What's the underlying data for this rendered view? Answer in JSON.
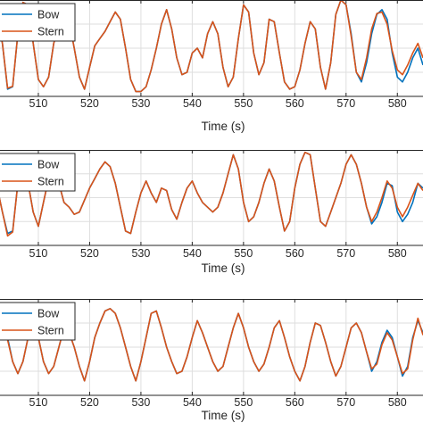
{
  "chart_data": [
    {
      "type": "line",
      "xlabel": "Time (s)",
      "xticks": [
        "510",
        "520",
        "530",
        "540",
        "550",
        "560",
        "570",
        "580"
      ],
      "xlim": [
        502,
        585
      ],
      "ylim": [
        -1.0,
        1.0
      ],
      "grid": true,
      "legend": {
        "position": "top-left",
        "entries": [
          "Bow",
          "Stern"
        ]
      },
      "series": [
        {
          "name": "Bow",
          "color": "#0072BD",
          "x": [
            502,
            503,
            504,
            505,
            506,
            507,
            508,
            509,
            510,
            511,
            512,
            513,
            514,
            515,
            516,
            517,
            518,
            519,
            520,
            521,
            522,
            523,
            524,
            525,
            526,
            527,
            528,
            529,
            530,
            531,
            532,
            533,
            534,
            535,
            536,
            537,
            538,
            539,
            540,
            541,
            542,
            543,
            544,
            545,
            546,
            547,
            548,
            549,
            550,
            551,
            552,
            553,
            554,
            555,
            556,
            557,
            558,
            559,
            560,
            561,
            562,
            563,
            564,
            565,
            566,
            567,
            568,
            569,
            570,
            571,
            572,
            573,
            574,
            575,
            576,
            577,
            578,
            579,
            580,
            581,
            582,
            583,
            584,
            585
          ],
          "y": [
            0.6,
            0.1,
            -0.85,
            -0.8,
            0.3,
            0.95,
            0.9,
            0.1,
            -0.65,
            -0.8,
            -0.6,
            0.1,
            0.45,
            0.6,
            0.55,
            0.0,
            -0.6,
            -0.85,
            -0.4,
            0.05,
            0.2,
            0.35,
            0.55,
            0.75,
            0.6,
            0.0,
            -0.65,
            -0.9,
            -0.9,
            -0.8,
            -0.45,
            0.0,
            0.5,
            0.8,
            0.4,
            -0.2,
            -0.55,
            -0.5,
            -0.1,
            0.0,
            -0.2,
            0.3,
            0.55,
            0.3,
            -0.4,
            -0.8,
            -0.6,
            0.2,
            0.9,
            0.75,
            -0.1,
            -0.55,
            -0.3,
            0.6,
            0.55,
            -0.1,
            -0.7,
            -0.85,
            -0.8,
            -0.45,
            0.1,
            0.55,
            0.4,
            -0.4,
            -0.85,
            -0.3,
            0.7,
            1.0,
            0.9,
            0.3,
            -0.5,
            -0.7,
            -0.3,
            0.3,
            0.7,
            0.8,
            0.6,
            -0.1,
            -0.6,
            -0.7,
            -0.5,
            -0.2,
            0.0,
            -0.35
          ]
        },
        {
          "name": "Stern",
          "color": "#D95319",
          "x": [
            502,
            503,
            504,
            505,
            506,
            507,
            508,
            509,
            510,
            511,
            512,
            513,
            514,
            515,
            516,
            517,
            518,
            519,
            520,
            521,
            522,
            523,
            524,
            525,
            526,
            527,
            528,
            529,
            530,
            531,
            532,
            533,
            534,
            535,
            536,
            537,
            538,
            539,
            540,
            541,
            542,
            543,
            544,
            545,
            546,
            547,
            548,
            549,
            550,
            551,
            552,
            553,
            554,
            555,
            556,
            557,
            558,
            559,
            560,
            561,
            562,
            563,
            564,
            565,
            566,
            567,
            568,
            569,
            570,
            571,
            572,
            573,
            574,
            575,
            576,
            577,
            578,
            579,
            580,
            581,
            582,
            583,
            584,
            585
          ],
          "y": [
            0.58,
            0.1,
            -0.83,
            -0.79,
            0.3,
            0.95,
            0.9,
            0.1,
            -0.65,
            -0.8,
            -0.6,
            0.1,
            0.45,
            0.6,
            0.55,
            0.0,
            -0.6,
            -0.85,
            -0.4,
            0.05,
            0.2,
            0.35,
            0.55,
            0.75,
            0.6,
            0.0,
            -0.65,
            -0.9,
            -0.9,
            -0.8,
            -0.45,
            0.0,
            0.5,
            0.8,
            0.4,
            -0.2,
            -0.55,
            -0.5,
            -0.1,
            0.0,
            -0.2,
            0.3,
            0.55,
            0.3,
            -0.4,
            -0.8,
            -0.6,
            0.2,
            0.9,
            0.75,
            -0.1,
            -0.55,
            -0.3,
            0.6,
            0.55,
            -0.1,
            -0.7,
            -0.85,
            -0.8,
            -0.45,
            0.1,
            0.55,
            0.4,
            -0.4,
            -0.85,
            -0.3,
            0.7,
            1.0,
            0.9,
            0.25,
            -0.5,
            -0.65,
            -0.2,
            0.4,
            0.72,
            0.75,
            0.5,
            -0.05,
            -0.45,
            -0.55,
            -0.35,
            -0.1,
            0.1,
            -0.2
          ]
        }
      ]
    },
    {
      "type": "line",
      "xlabel": "Time (s)",
      "xticks": [
        "510",
        "520",
        "530",
        "540",
        "550",
        "560",
        "570",
        "580"
      ],
      "xlim": [
        502,
        585
      ],
      "ylim": [
        -1.0,
        1.0
      ],
      "grid": true,
      "legend": {
        "position": "top-left",
        "entries": [
          "Bow",
          "Stern"
        ]
      },
      "series": [
        {
          "name": "Bow",
          "color": "#0072BD",
          "x": [
            502,
            503,
            504,
            505,
            506,
            507,
            508,
            509,
            510,
            511,
            512,
            513,
            514,
            515,
            516,
            517,
            518,
            519,
            520,
            521,
            522,
            523,
            524,
            525,
            526,
            527,
            528,
            529,
            530,
            531,
            532,
            533,
            534,
            535,
            536,
            537,
            538,
            539,
            540,
            541,
            542,
            543,
            544,
            545,
            546,
            547,
            548,
            549,
            550,
            551,
            552,
            553,
            554,
            555,
            556,
            557,
            558,
            559,
            560,
            561,
            562,
            563,
            564,
            565,
            566,
            567,
            568,
            569,
            570,
            571,
            572,
            573,
            574,
            575,
            576,
            577,
            578,
            579,
            580,
            581,
            582,
            583,
            584,
            585
          ],
          "y": [
            0.2,
            -0.3,
            -0.75,
            -0.7,
            0.3,
            0.6,
            0.3,
            -0.3,
            -0.6,
            -0.1,
            0.4,
            0.55,
            0.3,
            -0.1,
            -0.2,
            -0.35,
            -0.3,
            -0.05,
            0.2,
            0.4,
            0.6,
            0.75,
            0.65,
            0.3,
            -0.2,
            -0.7,
            -0.75,
            -0.3,
            0.1,
            0.35,
            0.1,
            -0.1,
            0.2,
            0.15,
            -0.25,
            -0.45,
            -0.1,
            0.2,
            0.35,
            0.1,
            -0.1,
            -0.2,
            -0.3,
            -0.2,
            0.1,
            0.5,
            0.9,
            0.6,
            -0.1,
            -0.5,
            -0.4,
            -0.1,
            0.3,
            0.6,
            0.35,
            -0.2,
            -0.7,
            -0.5,
            0.2,
            0.7,
            0.95,
            0.9,
            0.2,
            -0.5,
            -0.6,
            -0.3,
            0.0,
            0.3,
            0.7,
            0.9,
            0.7,
            0.3,
            -0.2,
            -0.55,
            -0.4,
            -0.1,
            0.3,
            0.25,
            -0.3,
            -0.5,
            -0.35,
            -0.1,
            0.3,
            0.2
          ]
        },
        {
          "name": "Stern",
          "color": "#D95319",
          "x": [
            502,
            503,
            504,
            505,
            506,
            507,
            508,
            509,
            510,
            511,
            512,
            513,
            514,
            515,
            516,
            517,
            518,
            519,
            520,
            521,
            522,
            523,
            524,
            525,
            526,
            527,
            528,
            529,
            530,
            531,
            532,
            533,
            534,
            535,
            536,
            537,
            538,
            539,
            540,
            541,
            542,
            543,
            544,
            545,
            546,
            547,
            548,
            549,
            550,
            551,
            552,
            553,
            554,
            555,
            556,
            557,
            558,
            559,
            560,
            561,
            562,
            563,
            564,
            565,
            566,
            567,
            568,
            569,
            570,
            571,
            572,
            573,
            574,
            575,
            576,
            577,
            578,
            579,
            580,
            581,
            582,
            583,
            584,
            585
          ],
          "y": [
            0.2,
            -0.3,
            -0.8,
            -0.72,
            0.3,
            0.6,
            0.3,
            -0.3,
            -0.6,
            -0.1,
            0.4,
            0.55,
            0.3,
            -0.1,
            -0.2,
            -0.35,
            -0.3,
            -0.05,
            0.2,
            0.4,
            0.6,
            0.75,
            0.65,
            0.3,
            -0.2,
            -0.7,
            -0.75,
            -0.3,
            0.1,
            0.35,
            0.1,
            -0.1,
            0.2,
            0.15,
            -0.25,
            -0.45,
            -0.1,
            0.2,
            0.35,
            0.1,
            -0.1,
            -0.2,
            -0.3,
            -0.2,
            0.1,
            0.5,
            0.9,
            0.6,
            -0.1,
            -0.5,
            -0.4,
            -0.1,
            0.3,
            0.6,
            0.35,
            -0.2,
            -0.7,
            -0.5,
            0.2,
            0.7,
            0.95,
            0.9,
            0.2,
            -0.5,
            -0.6,
            -0.3,
            0.0,
            0.3,
            0.7,
            0.9,
            0.7,
            0.3,
            -0.2,
            -0.5,
            -0.3,
            0.0,
            0.35,
            0.2,
            -0.2,
            -0.4,
            -0.2,
            0.05,
            0.3,
            0.15
          ]
        }
      ]
    },
    {
      "type": "line",
      "xlabel": "Time (s)",
      "xticks": [
        "510",
        "520",
        "530",
        "540",
        "550",
        "560",
        "570",
        "580"
      ],
      "xlim": [
        502,
        585
      ],
      "ylim": [
        -1.0,
        1.0
      ],
      "grid": true,
      "legend": {
        "position": "top-left",
        "entries": [
          "Bow",
          "Stern"
        ]
      },
      "series": [
        {
          "name": "Bow",
          "color": "#0072BD",
          "x": [
            502,
            503,
            504,
            505,
            506,
            507,
            508,
            509,
            510,
            511,
            512,
            513,
            514,
            515,
            516,
            517,
            518,
            519,
            520,
            521,
            522,
            523,
            524,
            525,
            526,
            527,
            528,
            529,
            530,
            531,
            532,
            533,
            534,
            535,
            536,
            537,
            538,
            539,
            540,
            541,
            542,
            543,
            544,
            545,
            546,
            547,
            548,
            549,
            550,
            551,
            552,
            553,
            554,
            555,
            556,
            557,
            558,
            559,
            560,
            561,
            562,
            563,
            564,
            565,
            566,
            567,
            568,
            569,
            570,
            571,
            572,
            573,
            574,
            575,
            576,
            577,
            578,
            579,
            580,
            581,
            582,
            583,
            584,
            585
          ],
          "y": [
            0.1,
            0.4,
            0.2,
            -0.3,
            -0.55,
            -0.3,
            0.2,
            0.45,
            0.2,
            -0.3,
            -0.55,
            -0.4,
            0.0,
            0.4,
            0.3,
            0.0,
            -0.4,
            -0.7,
            -0.3,
            0.2,
            0.5,
            0.75,
            0.8,
            0.7,
            0.4,
            0.0,
            -0.4,
            -0.7,
            -0.3,
            0.2,
            0.7,
            0.75,
            0.4,
            0.0,
            -0.3,
            -0.55,
            -0.5,
            -0.2,
            0.2,
            0.55,
            0.3,
            0.0,
            -0.3,
            -0.5,
            -0.4,
            0.0,
            0.4,
            0.7,
            0.4,
            0.0,
            -0.3,
            -0.5,
            -0.35,
            0.0,
            0.4,
            0.55,
            0.2,
            -0.2,
            -0.5,
            -0.7,
            -0.4,
            0.1,
            0.5,
            0.45,
            0.1,
            -0.3,
            -0.6,
            -0.4,
            0.0,
            0.4,
            0.5,
            0.3,
            -0.1,
            -0.5,
            -0.3,
            0.1,
            0.35,
            0.2,
            -0.2,
            -0.6,
            -0.4,
            0.2,
            0.55,
            0.3
          ]
        },
        {
          "name": "Stern",
          "color": "#D95319",
          "x": [
            502,
            503,
            504,
            505,
            506,
            507,
            508,
            509,
            510,
            511,
            512,
            513,
            514,
            515,
            516,
            517,
            518,
            519,
            520,
            521,
            522,
            523,
            524,
            525,
            526,
            527,
            528,
            529,
            530,
            531,
            532,
            533,
            534,
            535,
            536,
            537,
            538,
            539,
            540,
            541,
            542,
            543,
            544,
            545,
            546,
            547,
            548,
            549,
            550,
            551,
            552,
            553,
            554,
            555,
            556,
            557,
            558,
            559,
            560,
            561,
            562,
            563,
            564,
            565,
            566,
            567,
            568,
            569,
            570,
            571,
            572,
            573,
            574,
            575,
            576,
            577,
            578,
            579,
            580,
            581,
            582,
            583,
            584,
            585
          ],
          "y": [
            0.05,
            0.35,
            0.15,
            -0.3,
            -0.55,
            -0.3,
            0.2,
            0.45,
            0.2,
            -0.3,
            -0.55,
            -0.4,
            0.0,
            0.4,
            0.3,
            0.0,
            -0.4,
            -0.7,
            -0.3,
            0.2,
            0.5,
            0.75,
            0.8,
            0.7,
            0.4,
            0.0,
            -0.4,
            -0.7,
            -0.3,
            0.2,
            0.7,
            0.75,
            0.4,
            0.0,
            -0.3,
            -0.55,
            -0.5,
            -0.2,
            0.2,
            0.55,
            0.3,
            0.0,
            -0.3,
            -0.5,
            -0.4,
            0.0,
            0.4,
            0.7,
            0.4,
            0.0,
            -0.3,
            -0.5,
            -0.35,
            0.0,
            0.4,
            0.55,
            0.2,
            -0.2,
            -0.5,
            -0.7,
            -0.4,
            0.1,
            0.5,
            0.45,
            0.1,
            -0.3,
            -0.6,
            -0.4,
            0.0,
            0.4,
            0.5,
            0.3,
            -0.1,
            -0.45,
            -0.35,
            0.05,
            0.3,
            0.15,
            -0.2,
            -0.55,
            -0.45,
            0.15,
            0.6,
            0.25
          ]
        }
      ]
    }
  ]
}
